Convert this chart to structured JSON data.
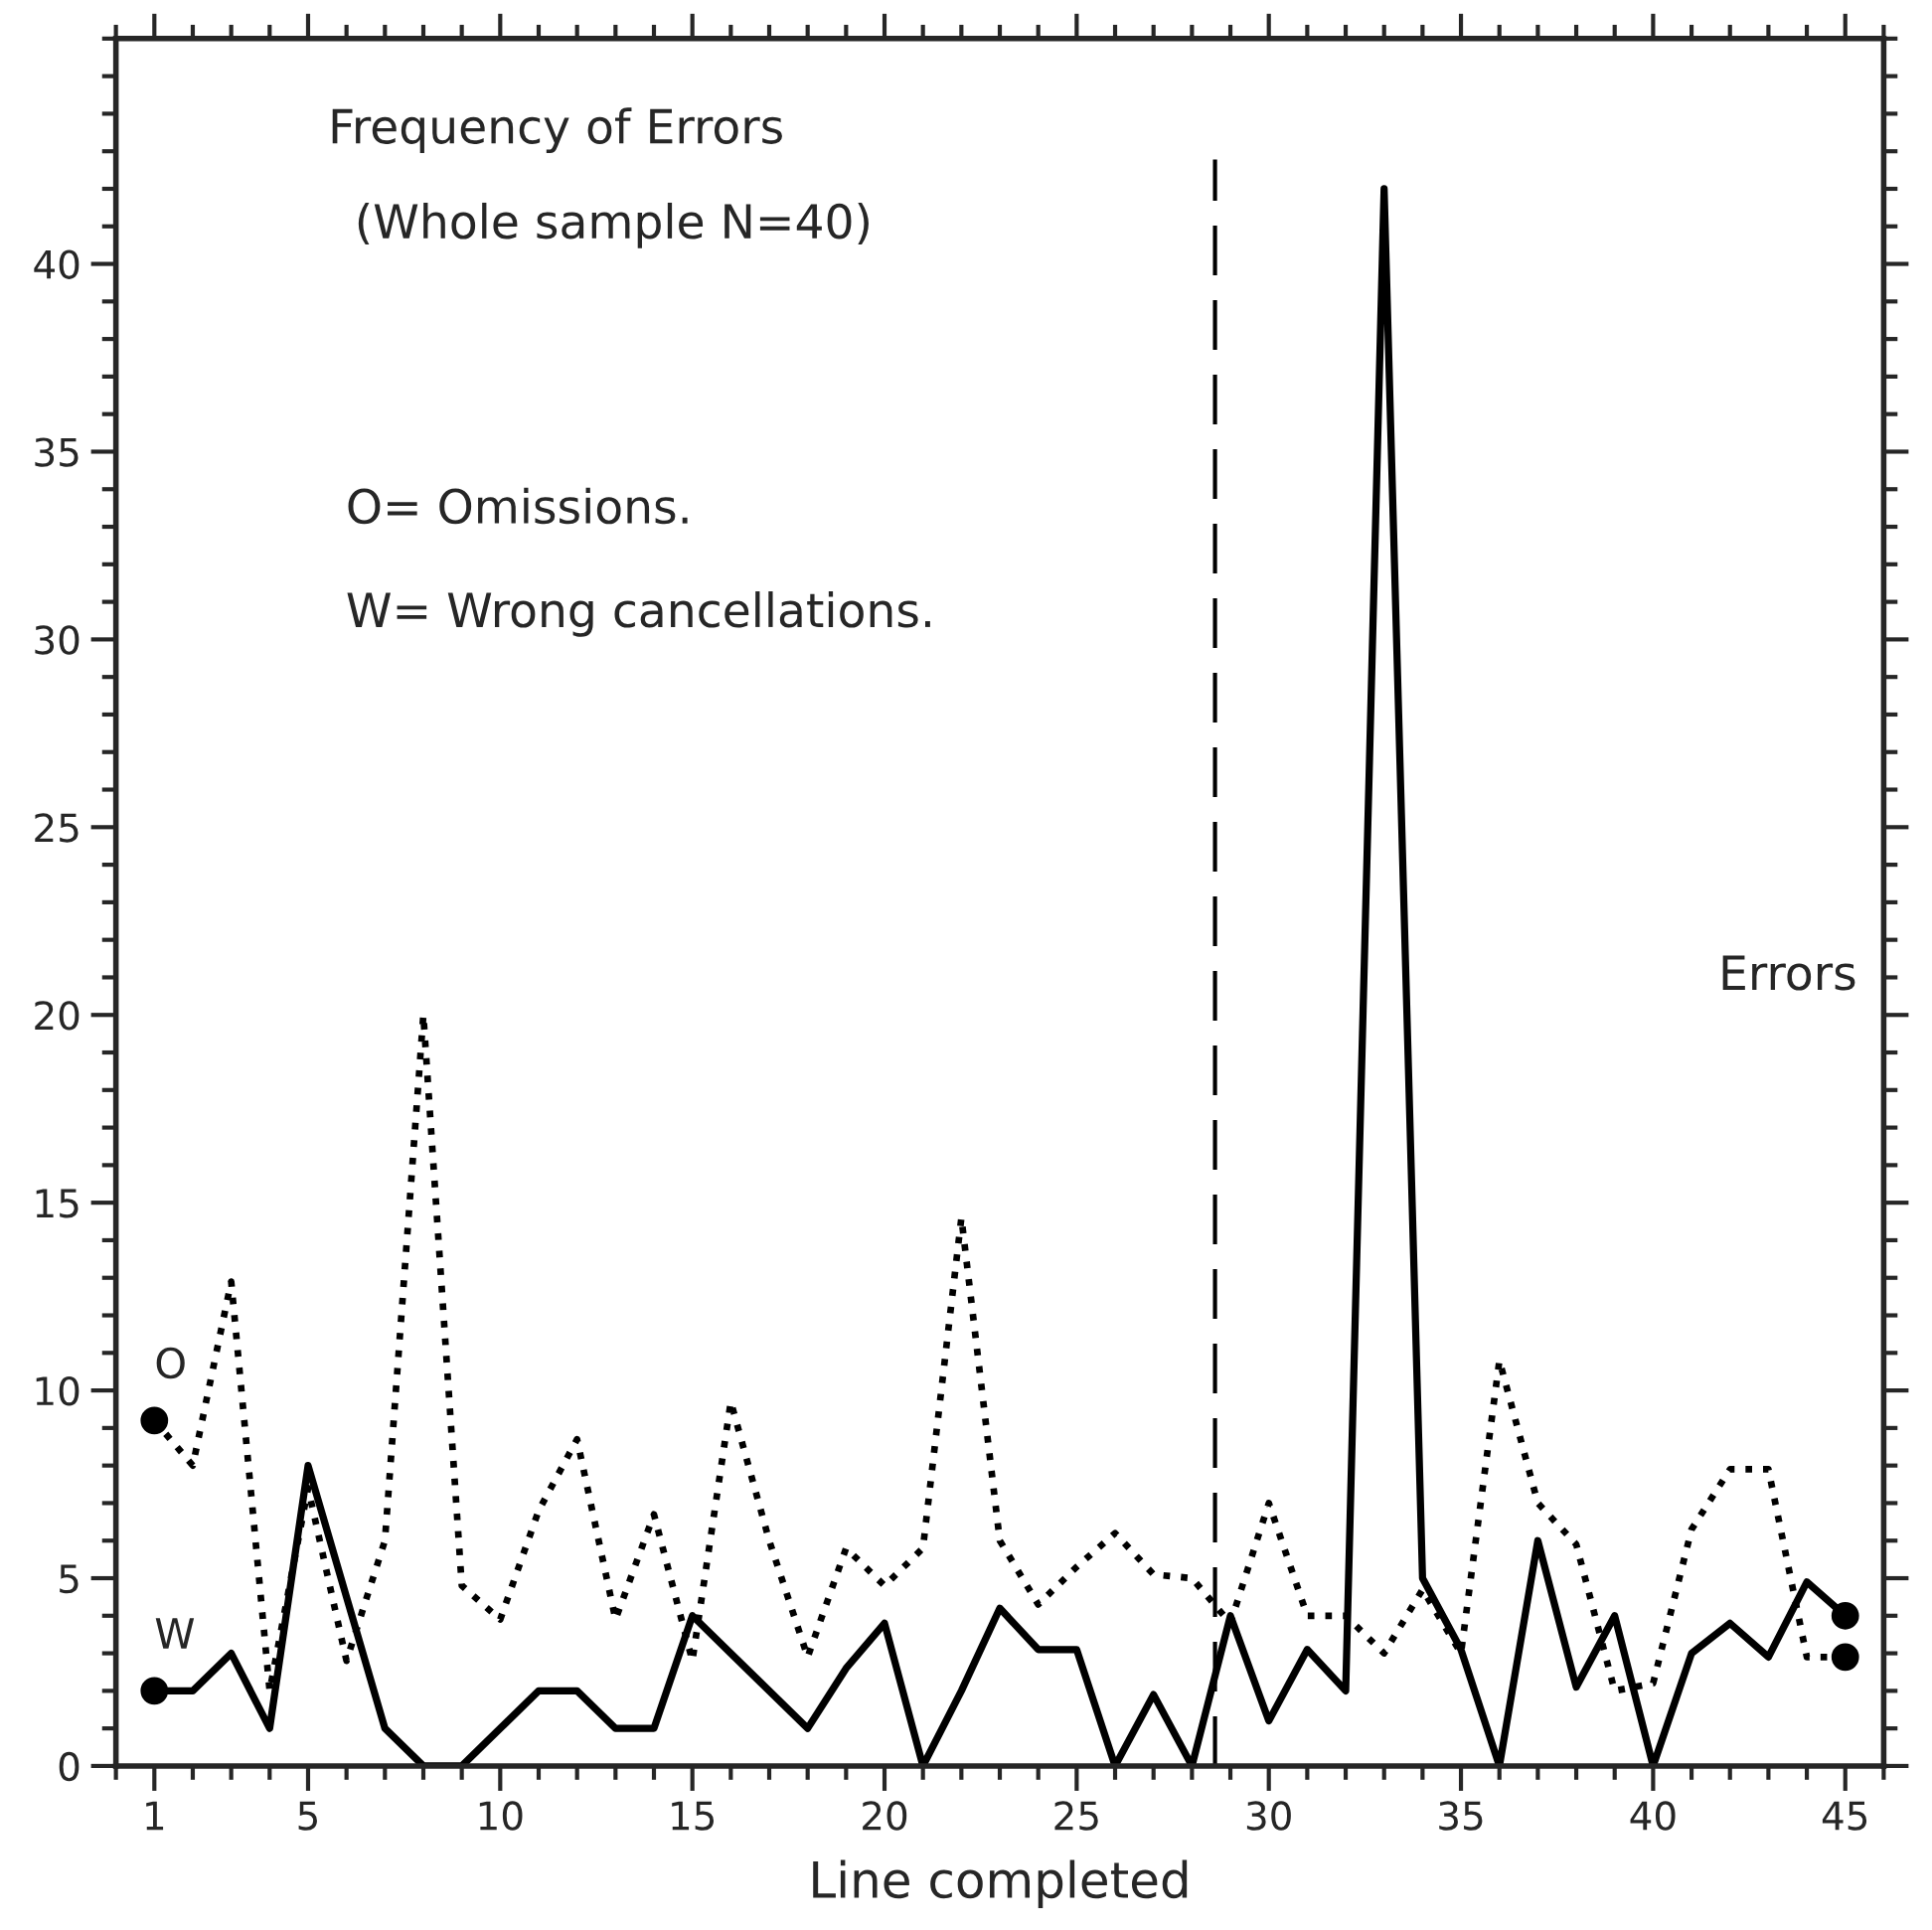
{
  "chart_data": {
    "type": "line",
    "title": "Frequency of Errors",
    "subtitle": "(Whole sample N=40)",
    "xlabel": "Line completed",
    "x": [
      1,
      2,
      3,
      4,
      5,
      6,
      7,
      8,
      9,
      10,
      11,
      12,
      13,
      14,
      15,
      16,
      17,
      18,
      19,
      20,
      21,
      22,
      23,
      24,
      25,
      26,
      27,
      28,
      29,
      30,
      31,
      32,
      33,
      34,
      35,
      36,
      37,
      38,
      39,
      40,
      41,
      42,
      43,
      44,
      45
    ],
    "series": [
      {
        "name": "O",
        "color": "#000000",
        "line_style": "dotted",
        "values": [
          9.2,
          8,
          12.9,
          2,
          7.4,
          2.8,
          6,
          20,
          4.8,
          3.9,
          6.8,
          8.7,
          3.9,
          6.7,
          2.8,
          9.7,
          6,
          2.9,
          5.8,
          4.8,
          5.8,
          14.6,
          6,
          4.3,
          5.3,
          6.2,
          5.1,
          5,
          3.8,
          7,
          4,
          4,
          3,
          4.7,
          3,
          10.8,
          7,
          5.9,
          2,
          2.2,
          6.3,
          7.9,
          7.9,
          2.9,
          2.9
        ]
      },
      {
        "name": "W",
        "color": "#000000",
        "line_style": "solid",
        "values": [
          2,
          2,
          3,
          1,
          8,
          4.5,
          1,
          0,
          0,
          1,
          2,
          2,
          1,
          1,
          4,
          3,
          2,
          1,
          2.6,
          3.8,
          0,
          2,
          4.2,
          3.1,
          3.1,
          0,
          1.9,
          0,
          4,
          1.2,
          3.1,
          2,
          42,
          5,
          3.1,
          0,
          6,
          2.1,
          4,
          0,
          3,
          3.8,
          2.9,
          4.9,
          4
        ]
      }
    ],
    "xlim": [
      0,
      46
    ],
    "ylim": [
      0,
      46
    ],
    "xticks": [
      1,
      5,
      10,
      15,
      20,
      25,
      30,
      35,
      40,
      45
    ],
    "yticks": [
      0,
      5,
      10,
      15,
      20,
      25,
      30,
      35,
      40
    ],
    "grid": false,
    "legend": false,
    "ref_lines": [
      {
        "axis": "x",
        "value": 28.6,
        "line_style": "dashed",
        "color": "#000000"
      }
    ],
    "annotations": [
      "O= Omissions.",
      "W= Wrong cancellations.",
      "Errors"
    ]
  }
}
